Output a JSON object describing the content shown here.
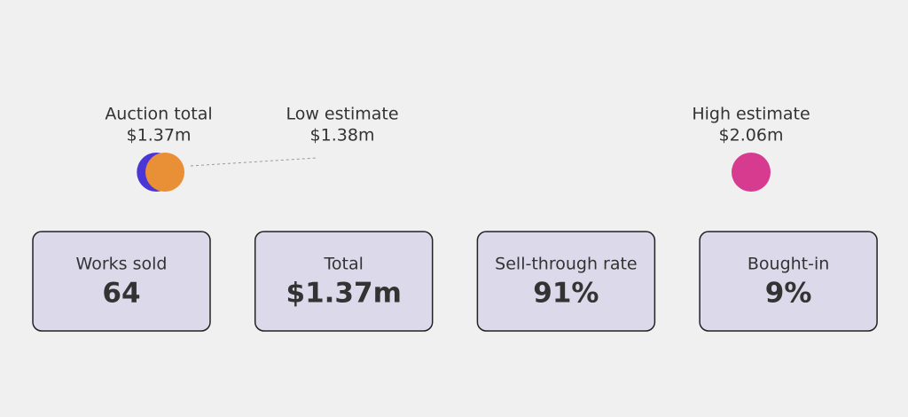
{
  "markers": [
    {
      "label": "Auction total",
      "value": {
        "value": 1.37,
        "label": "$1.37m"
      },
      "color": "#4a35d6"
    },
    {
      "label": "Low estimate",
      "value": {
        "value": 1.38,
        "label": "$1.38m"
      },
      "color": "#e98f36"
    },
    {
      "label": "High estimate",
      "value": {
        "value": 2.06,
        "label": "$2.06m"
      },
      "color": "#d63b8f"
    }
  ],
  "cards": [
    {
      "title": "Works sold",
      "value": "64"
    },
    {
      "title": "Total",
      "value": "$1.37m"
    },
    {
      "title": "Sell-through rate",
      "value": "91%"
    },
    {
      "title": "Bought-in",
      "value": "9%"
    }
  ]
}
